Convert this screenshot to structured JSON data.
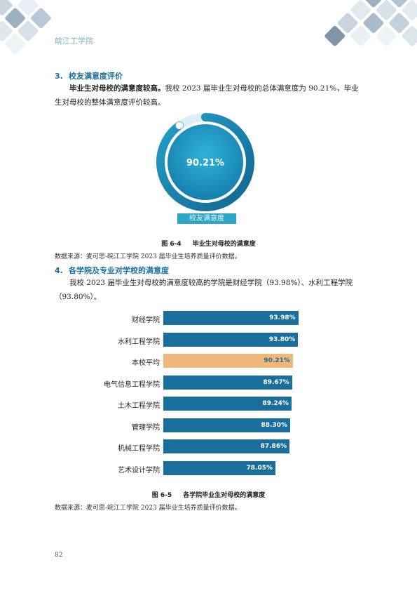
{
  "header": {
    "school_name": "皖江工学院"
  },
  "section3": {
    "number": "3.",
    "title": "校友满意度评价",
    "paragraph_bold": "毕业生对母校的满意度较高。",
    "paragraph_rest": "我校 2023 届毕业生对母校的总体满意度为 90.21%，毕业生对母校的整体满意度评价较高。"
  },
  "figure64": {
    "value_label": "90.21%",
    "value": 90.21,
    "bottom_label": "校友满意度",
    "caption_num": "图 6-4",
    "caption_title": "毕业生对母校的满意度",
    "source": "数据来源：麦可思-皖江工学院 2023 届毕业生培养质量评价数据。",
    "colors": {
      "ring": "#1a87b4",
      "inner": "#1f9dc6",
      "label_bg": "#2ba6c8"
    }
  },
  "section4": {
    "number": "4.",
    "title": "各学院及专业对学校的满意度",
    "paragraph": "我校 2023 届毕业生对母校的满意度较高的学院是财经学院（93.98%）、水利工程学院（93.80%）。"
  },
  "chart_data": {
    "type": "bar",
    "orientation": "horizontal",
    "categories": [
      "财经学院",
      "水利工程学院",
      "本校平均",
      "电气信息工程学院",
      "土木工程学院",
      "管理学院",
      "机械工程学院",
      "艺术设计学院"
    ],
    "values": [
      93.98,
      93.8,
      90.21,
      89.67,
      89.24,
      88.3,
      87.86,
      78.05
    ],
    "value_labels": [
      "93.98%",
      "93.80%",
      "90.21%",
      "89.67%",
      "89.24%",
      "88.30%",
      "87.86%",
      "78.05%"
    ],
    "highlight_index": 2,
    "colors": {
      "bar": "#1a6e9c",
      "highlight": "#f0b878",
      "highlight_text": "#1a6e9c"
    }
  },
  "figure65": {
    "caption_num": "图 6-5",
    "caption_title": "各学院毕业生对母校的满意度",
    "source": "数据来源：麦可思-皖江工学院 2023 届毕业生培养质量评价数据。"
  },
  "footer": {
    "page_number": "82"
  }
}
